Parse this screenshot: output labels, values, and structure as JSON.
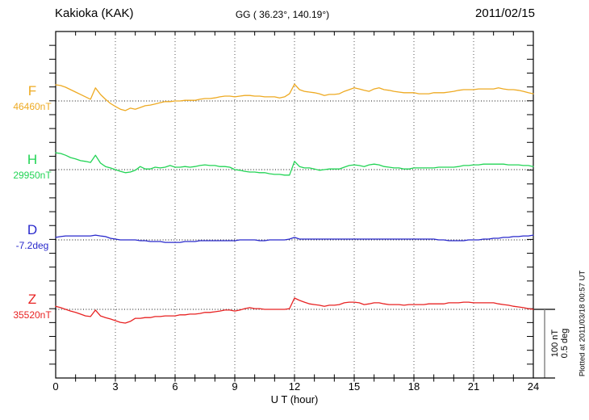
{
  "header": {
    "station": "Kakioka (KAK)",
    "coords": "GG ( 36.23°, 140.19°)",
    "date": "2011/02/15"
  },
  "xaxis": {
    "label": "U T (hour)",
    "ticks": [
      0,
      3,
      6,
      9,
      12,
      15,
      18,
      21,
      24
    ],
    "min": 0,
    "max": 24
  },
  "scale_bar": {
    "line1": "100 nT",
    "line2": "0.5 deg"
  },
  "footer_note": "Plotted at 2011/03/18 00:57 UT",
  "series": [
    {
      "letter": "F",
      "value_label": "46460nT",
      "color": "#eeaa22"
    },
    {
      "letter": "H",
      "value_label": "29950nT",
      "color": "#22d455"
    },
    {
      "letter": "D",
      "value_label": "-7.2deg",
      "color": "#2929cc"
    },
    {
      "letter": "Z",
      "value_label": "35520nT",
      "color": "#e82222"
    }
  ],
  "chart_data": {
    "type": "line",
    "title": "Kakioka (KAK) magnetogram, 2011/02/15",
    "xlabel": "U T (hour)",
    "x_range": [
      0,
      24
    ],
    "x_start": 0,
    "x_step": 0.25,
    "grid": "vertical dotted every 3 h, dotted zero-baseline per trace",
    "scale": {
      "nT_per_division": 100,
      "deg_per_division": 0.5
    },
    "series": [
      {
        "name": "F",
        "baseline_value": 46460,
        "unit": "nT",
        "offsets_unit": "nT relative to baseline",
        "values": [
          23.5,
          22.5,
          20,
          16.5,
          13,
          9.5,
          6,
          2.5,
          19,
          9.5,
          2.5,
          -3.5,
          -8,
          -12,
          -14,
          -10.5,
          -12,
          -9.5,
          -7,
          -6,
          -4.5,
          -2.5,
          -1,
          -1,
          0,
          0,
          1,
          1,
          1,
          2.5,
          3.5,
          3.5,
          4.5,
          6,
          7,
          7,
          6,
          7,
          8,
          8,
          7,
          7,
          6,
          6,
          6,
          4.5,
          6,
          10.5,
          24.5,
          16.5,
          14,
          13,
          12,
          10.5,
          8,
          9.5,
          9.5,
          10.5,
          14,
          16.5,
          19,
          17.5,
          15.5,
          14,
          17.5,
          19,
          16.5,
          15.5,
          14,
          13,
          12,
          12,
          12,
          10.5,
          10.5,
          10.5,
          12,
          12,
          12,
          13,
          14,
          15.5,
          16.5,
          16.5,
          16.5,
          17.5,
          17.5,
          17.5,
          17.5,
          19,
          17.5,
          16.5,
          16.5,
          15.5,
          14,
          12,
          10.5
        ]
      },
      {
        "name": "H",
        "baseline_value": 29950,
        "unit": "nT",
        "offsets_unit": "nT relative to baseline",
        "values": [
          24.5,
          23.5,
          21,
          17.5,
          15.5,
          13,
          12,
          10.5,
          21,
          9.5,
          4.5,
          2.5,
          0,
          -2.5,
          -4.5,
          -3.5,
          -1,
          4.5,
          1,
          1,
          3.5,
          2.5,
          3.5,
          6,
          3.5,
          3.5,
          4.5,
          3.5,
          4.5,
          6,
          7,
          6,
          6,
          4.5,
          4.5,
          3.5,
          0,
          -1,
          -2.5,
          -3.5,
          -3.5,
          -4.5,
          -4.5,
          -6,
          -7,
          -7,
          -8,
          -8,
          12,
          4.5,
          2.5,
          2.5,
          1,
          -1,
          0,
          1,
          1,
          1,
          3.5,
          6,
          7,
          6,
          4.5,
          7,
          8,
          7,
          4.5,
          3.5,
          2.5,
          2.5,
          1,
          1,
          2.5,
          2.5,
          2.5,
          2.5,
          2.5,
          3.5,
          3.5,
          3.5,
          3.5,
          4.5,
          6,
          6,
          7,
          7,
          8,
          8,
          8,
          8,
          8,
          7,
          7,
          7,
          6,
          6,
          4.5
        ]
      },
      {
        "name": "D",
        "baseline_value": -7.2,
        "unit": "deg",
        "offsets_unit": "deg relative to baseline",
        "values": [
          0.018,
          0.024,
          0.029,
          0.029,
          0.029,
          0.029,
          0.029,
          0.029,
          0.035,
          0.029,
          0.024,
          0.012,
          0.006,
          0,
          0,
          0,
          0,
          -0.006,
          -0.006,
          -0.012,
          -0.012,
          -0.012,
          -0.018,
          -0.018,
          -0.018,
          -0.018,
          -0.012,
          -0.012,
          -0.012,
          -0.006,
          -0.006,
          -0.006,
          -0.006,
          -0.006,
          -0.006,
          -0.006,
          -0.006,
          0,
          0,
          0,
          0,
          -0.006,
          -0.006,
          0,
          0,
          0,
          0,
          0.006,
          0.018,
          0.006,
          0.006,
          0.006,
          0.006,
          0.006,
          0.006,
          0.006,
          0.006,
          0.006,
          0.006,
          0.006,
          0.006,
          0.006,
          0.006,
          0.006,
          0.006,
          0.006,
          0.006,
          0.006,
          0.006,
          0.006,
          0.006,
          0.006,
          0.006,
          0.006,
          0.006,
          0.006,
          0.006,
          0,
          0,
          -0.006,
          -0.006,
          -0.006,
          -0.006,
          0,
          0,
          0,
          0.006,
          0.006,
          0.012,
          0.012,
          0.018,
          0.018,
          0.024,
          0.024,
          0.029,
          0.029,
          0.035
        ]
      },
      {
        "name": "Z",
        "baseline_value": 35520,
        "unit": "nT",
        "offsets_unit": "nT relative to baseline",
        "values": [
          4.5,
          2.5,
          0,
          -2.5,
          -4.5,
          -7,
          -9.5,
          -10.5,
          -1,
          -9.5,
          -12,
          -14,
          -16.5,
          -19,
          -20,
          -17.5,
          -13,
          -13,
          -12,
          -12,
          -10.5,
          -10.5,
          -9.5,
          -9.5,
          -9.5,
          -8,
          -8,
          -7,
          -7,
          -6,
          -4.5,
          -4.5,
          -3.5,
          -2.5,
          -1,
          -1,
          -2.5,
          -1,
          1,
          2.5,
          1,
          1,
          0,
          0,
          0,
          0,
          0,
          1,
          16.5,
          13,
          10.5,
          8,
          7,
          6,
          4.5,
          6,
          6,
          7,
          9.5,
          10.5,
          10.5,
          9.5,
          7,
          8,
          9.5,
          9.5,
          8,
          7,
          7,
          7,
          6,
          7,
          7,
          7,
          7,
          8,
          8,
          8,
          8,
          9.5,
          9.5,
          9.5,
          10.5,
          10.5,
          9.5,
          9.5,
          9.5,
          9.5,
          9.5,
          8,
          7,
          6,
          4.5,
          3.5,
          2.5,
          1,
          0
        ]
      }
    ]
  }
}
